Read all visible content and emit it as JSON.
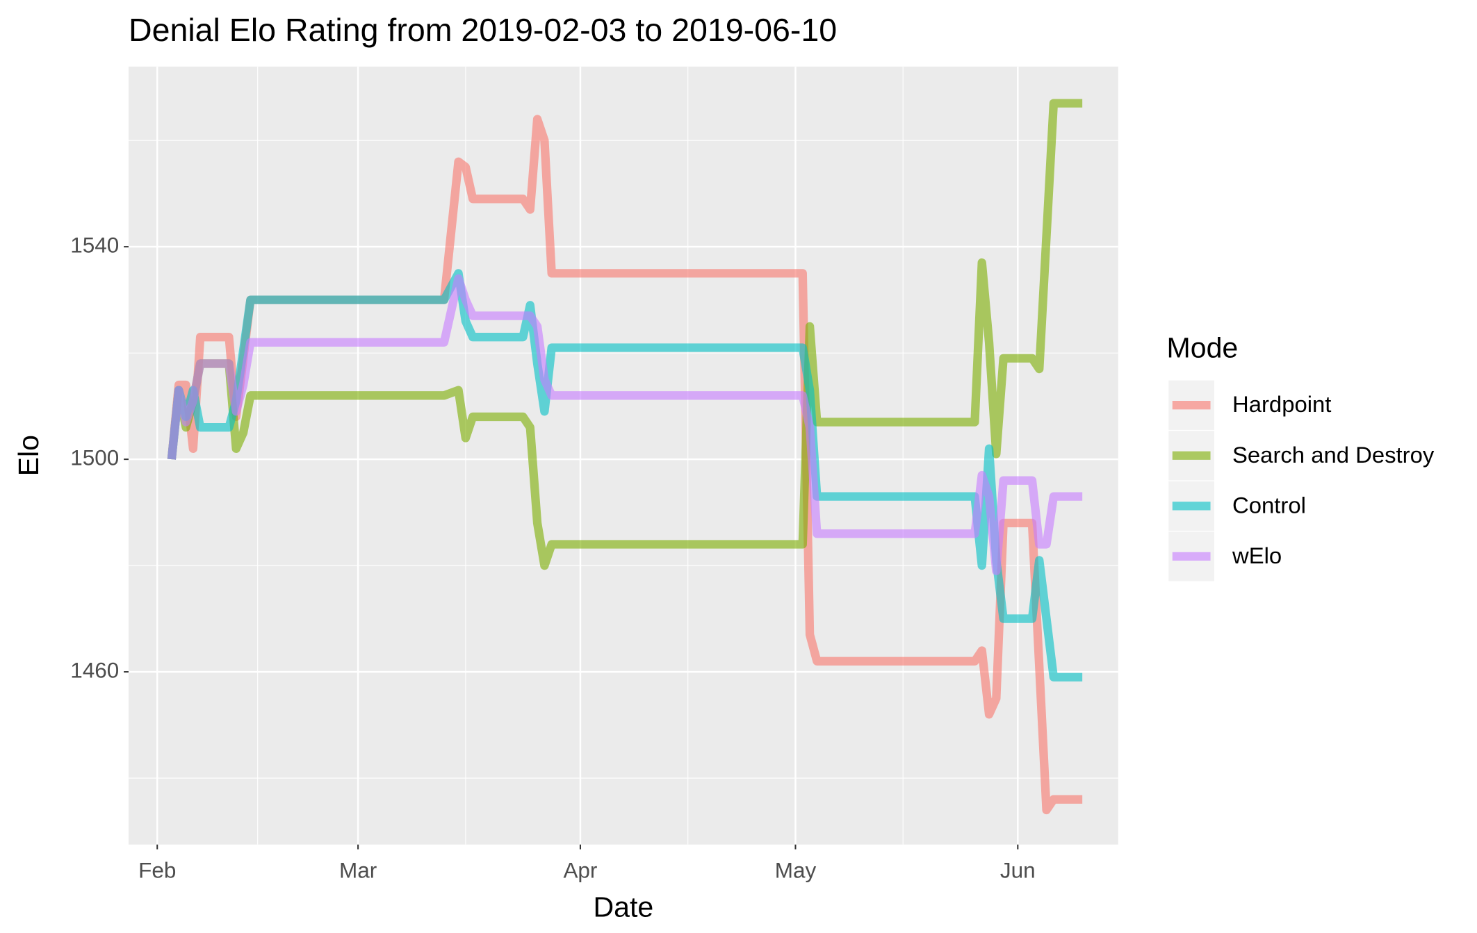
{
  "chart_data": {
    "type": "line",
    "title": "Denial Elo Rating from 2019-02-03 to 2019-06-10",
    "x_label": "Date",
    "y_label": "Elo",
    "legend_title": "Mode",
    "legend_position": "right",
    "grid": true,
    "alpha": 0.6,
    "xlim": [
      "2019-01-28",
      "2019-06-15"
    ],
    "xticks": [
      {
        "value": "2019-02-01",
        "label": "Feb"
      },
      {
        "value": "2019-03-01",
        "label": "Mar"
      },
      {
        "value": "2019-04-01",
        "label": "Apr"
      },
      {
        "value": "2019-05-01",
        "label": "May"
      },
      {
        "value": "2019-06-01",
        "label": "Jun"
      }
    ],
    "x_minor_grid": [
      "2019-02-15",
      "2019-03-16",
      "2019-04-16",
      "2019-05-16",
      "2019-06-16"
    ],
    "ylim": [
      1427.5,
      1573.9
    ],
    "yticks": [
      1460,
      1500,
      1540
    ],
    "y_minor_grid": [
      1440,
      1480,
      1520,
      1560
    ],
    "series": [
      {
        "name": "Hardpoint",
        "color": "#F8766D",
        "x": [
          "2019-02-03",
          "2019-02-04",
          "2019-02-05",
          "2019-02-06",
          "2019-02-07",
          "2019-02-11",
          "2019-02-12",
          "2019-02-14",
          "2019-03-13",
          "2019-03-15",
          "2019-03-16",
          "2019-03-17",
          "2019-03-24",
          "2019-03-25",
          "2019-03-26",
          "2019-03-27",
          "2019-03-28",
          "2019-05-02",
          "2019-05-03",
          "2019-05-04",
          "2019-05-26",
          "2019-05-27",
          "2019-05-28",
          "2019-05-29",
          "2019-05-30",
          "2019-06-03",
          "2019-06-05",
          "2019-06-06",
          "2019-06-10"
        ],
        "values": [
          1500,
          1514,
          1514,
          1502,
          1523,
          1523,
          1508,
          1530,
          1530,
          1556,
          1555,
          1549,
          1549,
          1547,
          1564,
          1560,
          1535,
          1535,
          1467,
          1462,
          1462,
          1464,
          1452,
          1455,
          1488,
          1488,
          1434,
          1436,
          1436
        ]
      },
      {
        "name": "Search and Destroy",
        "color": "#7CAE00",
        "x": [
          "2019-02-03",
          "2019-02-04",
          "2019-02-05",
          "2019-02-06",
          "2019-02-07",
          "2019-02-11",
          "2019-02-12",
          "2019-02-13",
          "2019-02-14",
          "2019-03-13",
          "2019-03-15",
          "2019-03-16",
          "2019-03-17",
          "2019-03-24",
          "2019-03-25",
          "2019-03-26",
          "2019-03-27",
          "2019-03-28",
          "2019-05-02",
          "2019-05-03",
          "2019-05-04",
          "2019-05-26",
          "2019-05-27",
          "2019-05-28",
          "2019-05-29",
          "2019-05-30",
          "2019-06-03",
          "2019-06-04",
          "2019-06-06",
          "2019-06-10"
        ],
        "values": [
          1500,
          1513,
          1506,
          1511,
          1518,
          1518,
          1502,
          1505,
          1512,
          1512,
          1513,
          1504,
          1508,
          1508,
          1506,
          1488,
          1480,
          1484,
          1484,
          1525,
          1507,
          1507,
          1537,
          1522,
          1501,
          1519,
          1519,
          1517,
          1567,
          1567
        ]
      },
      {
        "name": "Control",
        "color": "#00BFC4",
        "x": [
          "2019-02-03",
          "2019-02-04",
          "2019-02-05",
          "2019-02-06",
          "2019-02-07",
          "2019-02-11",
          "2019-02-12",
          "2019-02-14",
          "2019-03-13",
          "2019-03-15",
          "2019-03-16",
          "2019-03-17",
          "2019-03-24",
          "2019-03-25",
          "2019-03-26",
          "2019-03-27",
          "2019-03-28",
          "2019-05-02",
          "2019-05-03",
          "2019-05-04",
          "2019-05-26",
          "2019-05-27",
          "2019-05-28",
          "2019-05-29",
          "2019-05-30",
          "2019-06-03",
          "2019-06-04",
          "2019-06-06",
          "2019-06-10"
        ],
        "values": [
          1500,
          1513,
          1508,
          1513,
          1506,
          1506,
          1511,
          1530,
          1530,
          1535,
          1526,
          1523,
          1523,
          1529,
          1518,
          1509,
          1521,
          1521,
          1513,
          1493,
          1493,
          1480,
          1502,
          1481,
          1470,
          1470,
          1481,
          1459,
          1459
        ]
      },
      {
        "name": "wElo",
        "color": "#C77CFF",
        "x": [
          "2019-02-03",
          "2019-02-04",
          "2019-02-05",
          "2019-02-06",
          "2019-02-07",
          "2019-02-11",
          "2019-02-12",
          "2019-02-13",
          "2019-02-14",
          "2019-03-13",
          "2019-03-15",
          "2019-03-16",
          "2019-03-17",
          "2019-03-24",
          "2019-03-25",
          "2019-03-26",
          "2019-03-27",
          "2019-03-28",
          "2019-05-02",
          "2019-05-03",
          "2019-05-04",
          "2019-05-26",
          "2019-05-27",
          "2019-05-28",
          "2019-05-29",
          "2019-05-30",
          "2019-06-03",
          "2019-06-04",
          "2019-06-05",
          "2019-06-06",
          "2019-06-10"
        ],
        "values": [
          1500,
          1513,
          1507,
          1511,
          1518,
          1518,
          1509,
          1514,
          1522,
          1522,
          1534,
          1530,
          1527,
          1527,
          1527,
          1525,
          1515,
          1512,
          1512,
          1506,
          1486,
          1486,
          1497,
          1493,
          1479,
          1496,
          1496,
          1484,
          1484,
          1493,
          1493
        ]
      }
    ]
  }
}
